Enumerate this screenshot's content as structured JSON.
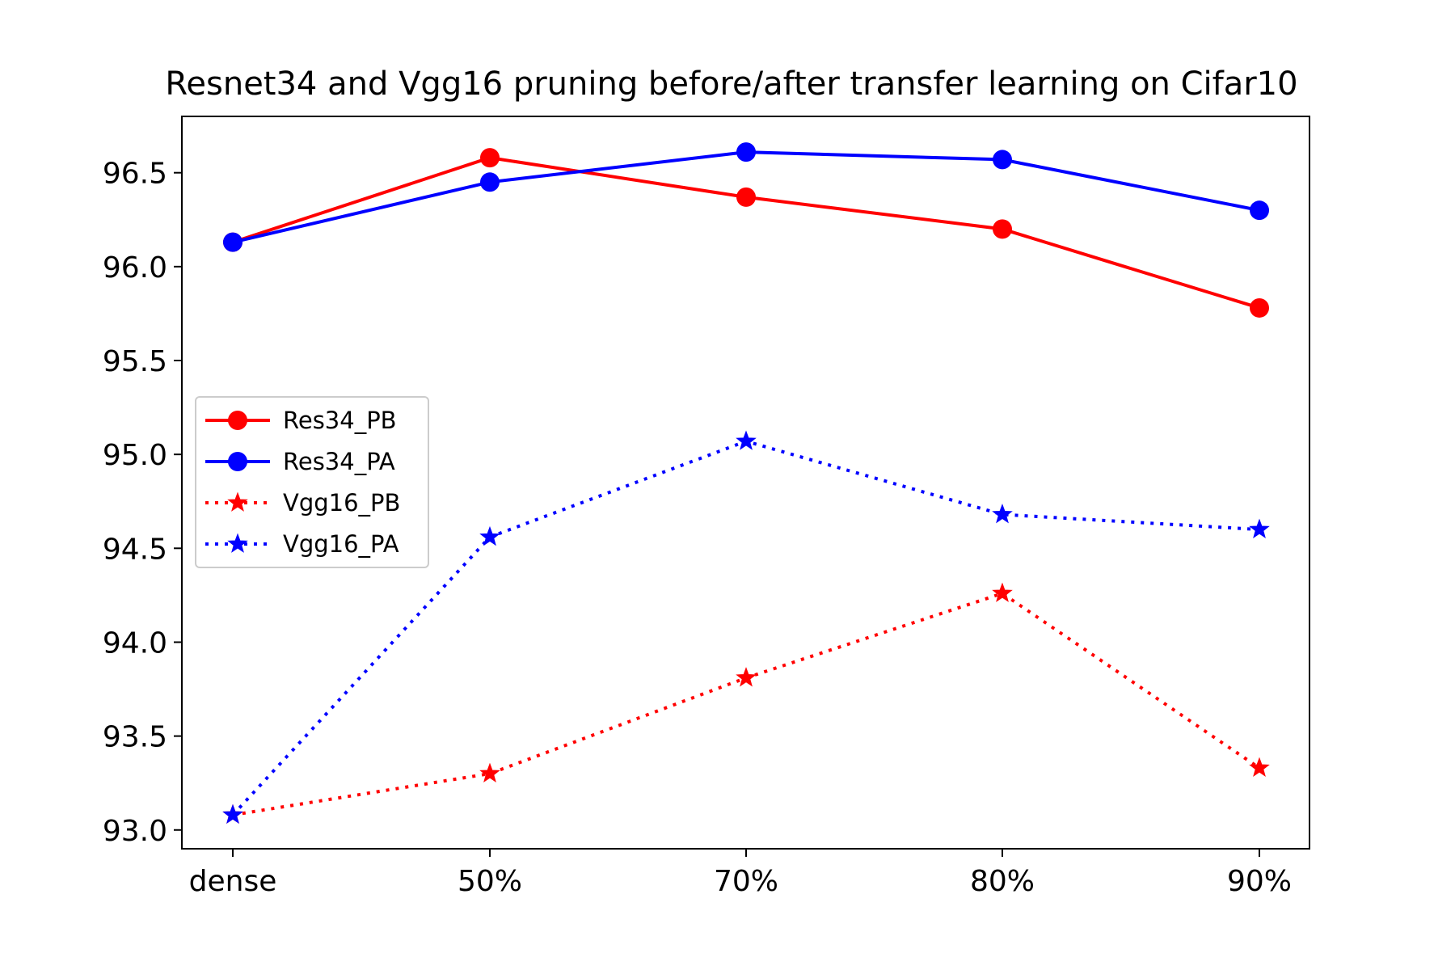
{
  "chart_data": {
    "type": "line",
    "title": "Resnet34 and Vgg16 pruning before/after transfer learning on Cifar10",
    "xlabel": "",
    "ylabel": "",
    "categories": [
      "dense",
      "50%",
      "70%",
      "80%",
      "90%"
    ],
    "ylim": [
      92.9,
      96.8
    ],
    "yticks": [
      "93.0",
      "93.5",
      "94.0",
      "94.5",
      "95.0",
      "95.5",
      "96.0",
      "96.5"
    ],
    "grid": false,
    "legend_position": "center-left",
    "series": [
      {
        "name": "Res34_PB",
        "values": [
          96.13,
          96.58,
          96.37,
          96.2,
          95.78
        ],
        "color": "#ff0000",
        "line_style": "solid",
        "marker": "circle"
      },
      {
        "name": "Res34_PA",
        "values": [
          96.13,
          96.45,
          96.61,
          96.57,
          96.3
        ],
        "color": "#0000ff",
        "line_style": "solid",
        "marker": "circle"
      },
      {
        "name": "Vgg16_PB",
        "values": [
          93.08,
          93.3,
          93.81,
          94.26,
          93.33
        ],
        "color": "#ff0000",
        "line_style": "dotted",
        "marker": "star"
      },
      {
        "name": "Vgg16_PA",
        "values": [
          93.08,
          94.56,
          95.07,
          94.68,
          94.6
        ],
        "color": "#0000ff",
        "line_style": "dotted",
        "marker": "star"
      }
    ]
  }
}
